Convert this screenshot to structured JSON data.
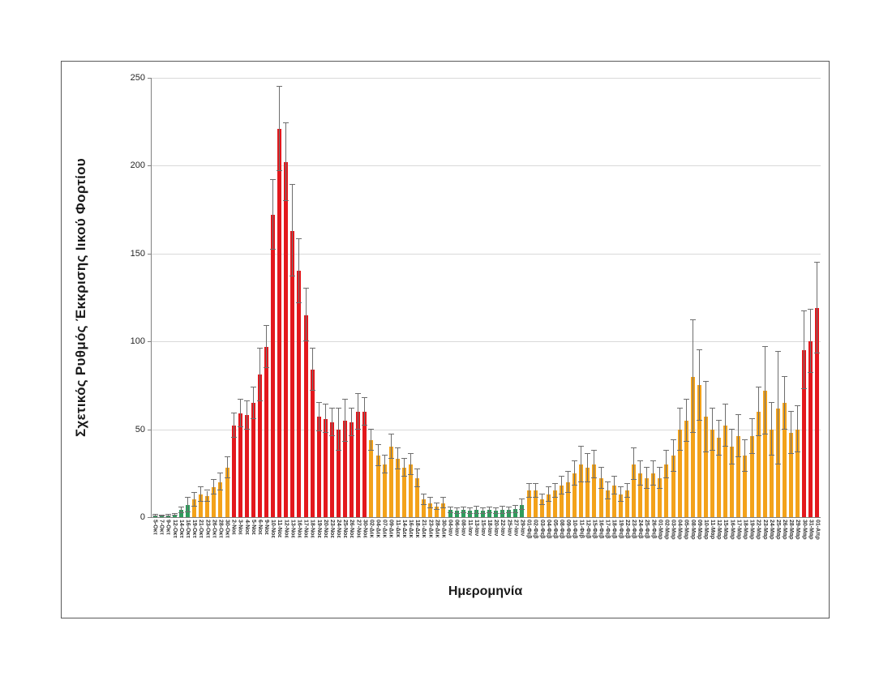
{
  "figure": {
    "background": "#ffffff",
    "frame_border_color": "#595959"
  },
  "chart_data": {
    "type": "bar",
    "title": "",
    "xlabel": "Ημερομηνία",
    "ylabel": "Σχετικός Ρυθμός Έκκρισης Ιικού Φορτίου",
    "ylim": [
      0,
      250
    ],
    "yticks": [
      0,
      50,
      100,
      150,
      200,
      250
    ],
    "grid": true,
    "legend_position": "none",
    "error_bars": true,
    "colors": {
      "green": "#2e9c5c",
      "orange": "#f3a21a",
      "red": "#e3181d",
      "error_bar": "#6e6e6e",
      "gridline": "#d9d9d9",
      "axis": "#808080"
    },
    "bars": [
      {
        "label": "5-Οκτ",
        "value": 0.8,
        "error": 0.4,
        "color": "green"
      },
      {
        "label": "7-Οκτ",
        "value": 0.8,
        "error": 0.3,
        "color": "green"
      },
      {
        "label": "9-Οκτ",
        "value": 1,
        "error": 0.4,
        "color": "green"
      },
      {
        "label": "12-Οκτ",
        "value": 1.2,
        "error": 0.5,
        "color": "green"
      },
      {
        "label": "14-Οκτ",
        "value": 4,
        "error": 1.5,
        "color": "green"
      },
      {
        "label": "16-Οκτ",
        "value": 7,
        "error": 4,
        "color": "green"
      },
      {
        "label": "19-Οκτ",
        "value": 10,
        "error": 4,
        "color": "orange"
      },
      {
        "label": "21-Οκτ",
        "value": 13,
        "error": 4,
        "color": "orange"
      },
      {
        "label": "23-Οκτ",
        "value": 12,
        "error": 3,
        "color": "orange"
      },
      {
        "label": "26-Οκτ",
        "value": 17,
        "error": 4,
        "color": "orange"
      },
      {
        "label": "28-Οκτ",
        "value": 20,
        "error": 5,
        "color": "orange"
      },
      {
        "label": "30-Οκτ",
        "value": 28,
        "error": 6,
        "color": "orange"
      },
      {
        "label": "2-Νοε",
        "value": 52,
        "error": 7,
        "color": "red"
      },
      {
        "label": "3-Νοε",
        "value": 59,
        "error": 8,
        "color": "red"
      },
      {
        "label": "4-Νοε",
        "value": 58,
        "error": 8,
        "color": "red"
      },
      {
        "label": "5-Νοε",
        "value": 65,
        "error": 9,
        "color": "red"
      },
      {
        "label": "6-Νοε",
        "value": 81,
        "error": 15,
        "color": "red"
      },
      {
        "label": "9-Νοε",
        "value": 97,
        "error": 12,
        "color": "red"
      },
      {
        "label": "10-Νοε",
        "value": 172,
        "error": 20,
        "color": "red"
      },
      {
        "label": "11-Νοε",
        "value": 221,
        "error": 24,
        "color": "red"
      },
      {
        "label": "12-Νοε",
        "value": 202,
        "error": 22,
        "color": "red"
      },
      {
        "label": "13-Νοε",
        "value": 163,
        "error": 26,
        "color": "red"
      },
      {
        "label": "16-Νοε",
        "value": 140,
        "error": 18,
        "color": "red"
      },
      {
        "label": "17-Νοε",
        "value": 115,
        "error": 15,
        "color": "red"
      },
      {
        "label": "18-Νοε",
        "value": 84,
        "error": 12,
        "color": "red"
      },
      {
        "label": "19-Νοε",
        "value": 57,
        "error": 8,
        "color": "red"
      },
      {
        "label": "20-Νοε",
        "value": 56,
        "error": 8,
        "color": "red"
      },
      {
        "label": "23-Νοε",
        "value": 54,
        "error": 8,
        "color": "red"
      },
      {
        "label": "24-Νοε",
        "value": 50,
        "error": 12,
        "color": "red"
      },
      {
        "label": "25-Νοε",
        "value": 55,
        "error": 12,
        "color": "red"
      },
      {
        "label": "26-Νοε",
        "value": 54,
        "error": 8,
        "color": "red"
      },
      {
        "label": "27-Νοε",
        "value": 60,
        "error": 10,
        "color": "red"
      },
      {
        "label": "30-Νοε",
        "value": 60,
        "error": 8,
        "color": "red"
      },
      {
        "label": "02-Δεκ",
        "value": 44,
        "error": 6,
        "color": "orange"
      },
      {
        "label": "04-Δεκ",
        "value": 35,
        "error": 6,
        "color": "orange"
      },
      {
        "label": "07-Δεκ",
        "value": 30,
        "error": 5,
        "color": "orange"
      },
      {
        "label": "09-Δεκ",
        "value": 40,
        "error": 7,
        "color": "orange"
      },
      {
        "label": "11-Δεκ",
        "value": 33,
        "error": 6,
        "color": "orange"
      },
      {
        "label": "14-Δεκ",
        "value": 28,
        "error": 5,
        "color": "orange"
      },
      {
        "label": "16-Δεκ",
        "value": 30,
        "error": 6,
        "color": "orange"
      },
      {
        "label": "18-Δεκ",
        "value": 22,
        "error": 5,
        "color": "orange"
      },
      {
        "label": "21-Δεκ",
        "value": 10,
        "error": 3,
        "color": "orange"
      },
      {
        "label": "23-Δεκ",
        "value": 8,
        "error": 3,
        "color": "orange"
      },
      {
        "label": "28-Δεκ",
        "value": 6,
        "error": 2,
        "color": "orange"
      },
      {
        "label": "30-Δεκ",
        "value": 8,
        "error": 3,
        "color": "orange"
      },
      {
        "label": "04-Ιαν",
        "value": 4,
        "error": 1.5,
        "color": "green"
      },
      {
        "label": "06-Ιαν",
        "value": 3.5,
        "error": 1.5,
        "color": "green"
      },
      {
        "label": "08-Ιαν",
        "value": 4,
        "error": 1.5,
        "color": "green"
      },
      {
        "label": "11-Ιαν",
        "value": 3.5,
        "error": 1.5,
        "color": "green"
      },
      {
        "label": "13-Ιαν",
        "value": 4,
        "error": 2,
        "color": "green"
      },
      {
        "label": "15-Ιαν",
        "value": 3.5,
        "error": 1.5,
        "color": "green"
      },
      {
        "label": "18-Ιαν",
        "value": 4,
        "error": 1.5,
        "color": "green"
      },
      {
        "label": "20-Ιαν",
        "value": 3.5,
        "error": 1.5,
        "color": "green"
      },
      {
        "label": "22-Ιαν",
        "value": 4,
        "error": 2,
        "color": "green"
      },
      {
        "label": "25-Ιαν",
        "value": 4,
        "error": 1.5,
        "color": "green"
      },
      {
        "label": "27-Ιαν",
        "value": 4.5,
        "error": 2,
        "color": "green"
      },
      {
        "label": "29-Ιαν",
        "value": 7,
        "error": 3,
        "color": "green"
      },
      {
        "label": "01-Φεβ",
        "value": 15,
        "error": 4,
        "color": "orange"
      },
      {
        "label": "02-Φεβ",
        "value": 15,
        "error": 4,
        "color": "orange"
      },
      {
        "label": "03-Φεβ",
        "value": 10,
        "error": 3,
        "color": "orange"
      },
      {
        "label": "04-Φεβ",
        "value": 13,
        "error": 4,
        "color": "orange"
      },
      {
        "label": "05-Φεβ",
        "value": 15,
        "error": 4,
        "color": "orange"
      },
      {
        "label": "08-Φεβ",
        "value": 18,
        "error": 5,
        "color": "orange"
      },
      {
        "label": "09-Φεβ",
        "value": 20,
        "error": 6,
        "color": "orange"
      },
      {
        "label": "10-Φεβ",
        "value": 25,
        "error": 7,
        "color": "orange"
      },
      {
        "label": "11-Φεβ",
        "value": 30,
        "error": 10,
        "color": "orange"
      },
      {
        "label": "12-Φεβ",
        "value": 28,
        "error": 8,
        "color": "orange"
      },
      {
        "label": "15-Φεβ",
        "value": 30,
        "error": 8,
        "color": "orange"
      },
      {
        "label": "16-Φεβ",
        "value": 22,
        "error": 6,
        "color": "orange"
      },
      {
        "label": "17-Φεβ",
        "value": 15,
        "error": 5,
        "color": "orange"
      },
      {
        "label": "18-Φεβ",
        "value": 18,
        "error": 5,
        "color": "orange"
      },
      {
        "label": "19-Φεβ",
        "value": 13,
        "error": 4,
        "color": "orange"
      },
      {
        "label": "22-Φεβ",
        "value": 15,
        "error": 4,
        "color": "orange"
      },
      {
        "label": "23-Φεβ",
        "value": 30,
        "error": 9,
        "color": "orange"
      },
      {
        "label": "24-Φεβ",
        "value": 25,
        "error": 7,
        "color": "orange"
      },
      {
        "label": "25-Φεβ",
        "value": 22,
        "error": 6,
        "color": "orange"
      },
      {
        "label": "26-Φεβ",
        "value": 25,
        "error": 7,
        "color": "orange"
      },
      {
        "label": "01-Μαρ",
        "value": 22,
        "error": 6,
        "color": "orange"
      },
      {
        "label": "02-Μαρ",
        "value": 30,
        "error": 8,
        "color": "orange"
      },
      {
        "label": "03-Μαρ",
        "value": 35,
        "error": 9,
        "color": "orange"
      },
      {
        "label": "04-Μαρ",
        "value": 50,
        "error": 12,
        "color": "orange"
      },
      {
        "label": "05-Μαρ",
        "value": 55,
        "error": 12,
        "color": "orange"
      },
      {
        "label": "08-Μαρ",
        "value": 80,
        "error": 32,
        "color": "orange"
      },
      {
        "label": "09-Μαρ",
        "value": 75,
        "error": 20,
        "color": "orange"
      },
      {
        "label": "10-Μαρ",
        "value": 57,
        "error": 20,
        "color": "orange"
      },
      {
        "label": "11-Μαρ",
        "value": 50,
        "error": 12,
        "color": "orange"
      },
      {
        "label": "12-Μαρ",
        "value": 45,
        "error": 10,
        "color": "orange"
      },
      {
        "label": "15-Μαρ",
        "value": 52,
        "error": 12,
        "color": "orange"
      },
      {
        "label": "16-Μαρ",
        "value": 40,
        "error": 10,
        "color": "orange"
      },
      {
        "label": "17-Μαρ",
        "value": 46,
        "error": 12,
        "color": "orange"
      },
      {
        "label": "18-Μαρ",
        "value": 35,
        "error": 9,
        "color": "orange"
      },
      {
        "label": "19-Μαρ",
        "value": 46,
        "error": 10,
        "color": "orange"
      },
      {
        "label": "22-Μαρ",
        "value": 60,
        "error": 14,
        "color": "orange"
      },
      {
        "label": "23-Μαρ",
        "value": 72,
        "error": 25,
        "color": "orange"
      },
      {
        "label": "24-Μαρ",
        "value": 50,
        "error": 15,
        "color": "orange"
      },
      {
        "label": "25-Μαρ",
        "value": 62,
        "error": 32,
        "color": "orange"
      },
      {
        "label": "26-Μαρ",
        "value": 65,
        "error": 15,
        "color": "orange"
      },
      {
        "label": "28-Μαρ",
        "value": 48,
        "error": 12,
        "color": "orange"
      },
      {
        "label": "29-Μαρ",
        "value": 50,
        "error": 13,
        "color": "orange"
      },
      {
        "label": "30-Μαρ",
        "value": 95,
        "error": 22,
        "color": "red"
      },
      {
        "label": "31-Μαρ",
        "value": 100,
        "error": 18,
        "color": "red"
      },
      {
        "label": "01-Απρ",
        "value": 119,
        "error": 26,
        "color": "red"
      }
    ]
  }
}
